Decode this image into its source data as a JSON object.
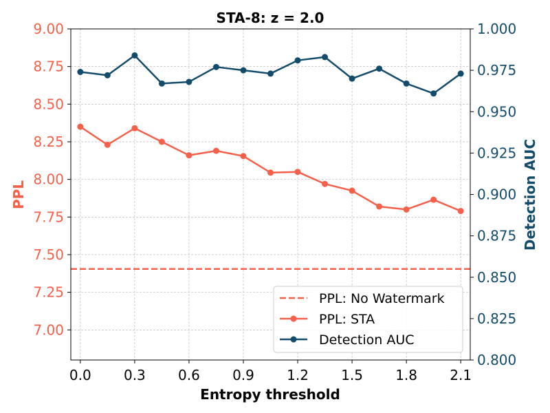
{
  "chart_data": {
    "type": "line",
    "title": "STA-8: z = 2.0",
    "xlabel": "Entropy threshold",
    "ylabel_left": "PPL",
    "ylabel_right": "Detection AUC",
    "xlim": [
      -0.0525,
      2.1525
    ],
    "ylim_left": [
      6.8,
      9.0
    ],
    "ylim_right": [
      0.8,
      1.0
    ],
    "x_ticks": [
      "0.0",
      "0.3",
      "0.6",
      "0.9",
      "1.2",
      "1.5",
      "1.8",
      "2.1"
    ],
    "x_tick_values": [
      0.0,
      0.3,
      0.6,
      0.9,
      1.2,
      1.5,
      1.8,
      2.1
    ],
    "y_left_ticks": [
      "7.00",
      "7.25",
      "7.50",
      "7.75",
      "8.00",
      "8.25",
      "8.50",
      "8.75",
      "9.00"
    ],
    "y_left_tick_values": [
      7.0,
      7.25,
      7.5,
      7.75,
      8.0,
      8.25,
      8.5,
      8.75,
      9.0
    ],
    "y_right_ticks": [
      "0.800",
      "0.825",
      "0.850",
      "0.875",
      "0.900",
      "0.925",
      "0.950",
      "0.975",
      "1.000"
    ],
    "y_right_tick_values": [
      0.8,
      0.825,
      0.85,
      0.875,
      0.9,
      0.925,
      0.95,
      0.975,
      1.0
    ],
    "grid": true,
    "legend_position": "bottom-right",
    "x": [
      0.0,
      0.15,
      0.3,
      0.45,
      0.6,
      0.75,
      0.9,
      1.05,
      1.2,
      1.35,
      1.5,
      1.65,
      1.8,
      1.95,
      2.1
    ],
    "series": [
      {
        "name": "PPL: No Watermark",
        "axis": "left",
        "style": "dashed",
        "color": "#f4604a",
        "constant": 7.405
      },
      {
        "name": "PPL: STA",
        "axis": "left",
        "style": "line-marker",
        "color": "#f4604a",
        "values": [
          8.35,
          8.23,
          8.34,
          8.25,
          8.16,
          8.19,
          8.155,
          8.045,
          8.05,
          7.97,
          7.925,
          7.82,
          7.8,
          7.865,
          7.79
        ]
      },
      {
        "name": "Detection AUC",
        "axis": "right",
        "style": "line-marker",
        "color": "#134b6b",
        "values": [
          0.974,
          0.972,
          0.984,
          0.967,
          0.968,
          0.977,
          0.975,
          0.973,
          0.981,
          0.983,
          0.97,
          0.976,
          0.967,
          0.961,
          0.973
        ]
      }
    ],
    "colors": {
      "left_axis": "#f4604a",
      "right_axis": "#134b6b",
      "grid": "#b0b0b0"
    }
  }
}
